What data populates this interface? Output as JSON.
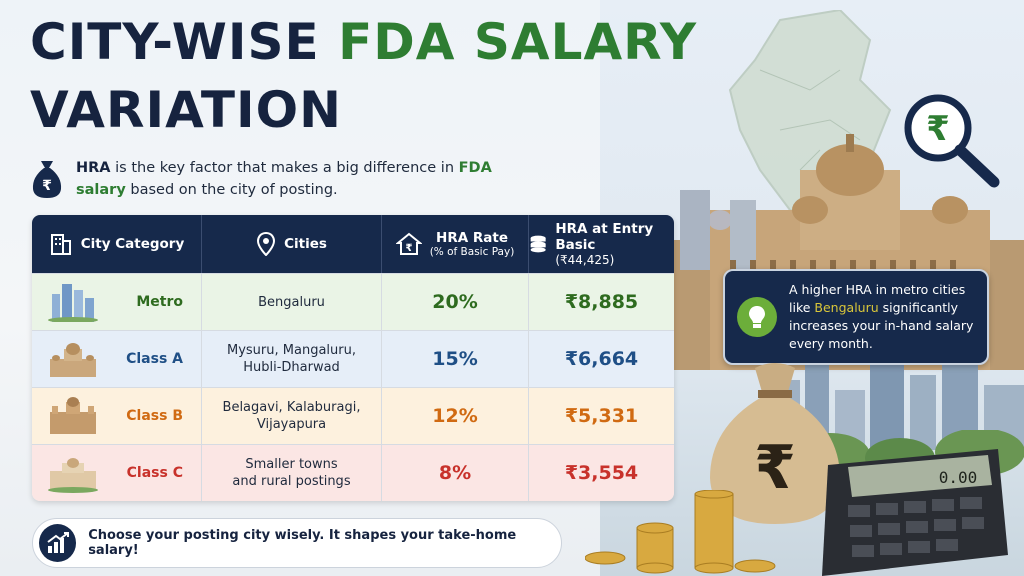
{
  "title": {
    "part1": "CITY-WISE ",
    "part2": "FDA SALARY",
    "part3": "VARIATION"
  },
  "intro": {
    "hra": "HRA",
    "text1": " is the key factor that makes a big difference in ",
    "fda": "FDA salary",
    "text2": " based on the city of posting."
  },
  "table": {
    "headers": {
      "category": "City Category",
      "cities": "Cities",
      "rate": "HRA Rate",
      "rate_sub": "(% of Basic Pay)",
      "amount": "HRA at Entry Basic",
      "amount_sub": "(₹44,425)"
    },
    "rows": [
      {
        "category": "Metro",
        "cities": "Bengaluru",
        "rate": "20%",
        "amount": "₹8,885"
      },
      {
        "category": "Class A",
        "cities": "Mysuru, Mangaluru, Hubli-Dharwad",
        "rate": "15%",
        "amount": "₹6,664"
      },
      {
        "category": "Class B",
        "cities": "Belagavi, Kalaburagi, Vijayapura",
        "rate": "12%",
        "amount": "₹5,331"
      },
      {
        "category": "Class C",
        "cities": "Smaller towns and rural postings",
        "rate": "8%",
        "amount": "₹3,554"
      }
    ]
  },
  "tip": {
    "text1": "A higher HRA in metro cities like ",
    "highlight": "Bengaluru",
    "text2": " significantly increases your in-hand salary every month."
  },
  "footer": {
    "text": "Choose your posting city wisely. It shapes your take-home salary!"
  },
  "calculator": {
    "display": "0.00"
  },
  "bag": {
    "symbol": "₹"
  },
  "magnifier": {
    "symbol": "₹"
  },
  "colors": {
    "navy": "#16294b",
    "green": "#2e7d32",
    "metro": "#2e6b1f",
    "classA": "#1f4f86",
    "classB": "#d06a12",
    "classC": "#c8322b"
  }
}
